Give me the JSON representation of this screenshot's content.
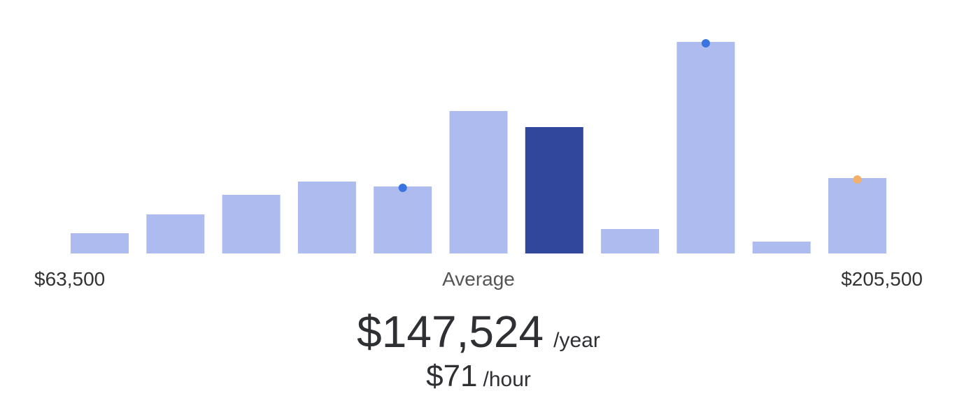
{
  "chart_data": {
    "type": "bar",
    "values": [
      29,
      56,
      84,
      103,
      96,
      204,
      181,
      35,
      303,
      17,
      108
    ],
    "ylim": [
      0,
      303
    ],
    "color": "#adbbee",
    "highlight": {
      "index": 6,
      "color": "#30479b"
    },
    "markers": [
      {
        "index": 4,
        "color": "#3b73e0"
      },
      {
        "index": 8,
        "color": "#3b73e0"
      },
      {
        "index": 10,
        "color": "#f2b06a"
      }
    ],
    "range_labels": {
      "min": "$63,500",
      "center": "Average",
      "max": "$205,500"
    },
    "summary": {
      "yearly": "$147,524",
      "yearly_unit": "/year",
      "hourly": "$71",
      "hourly_unit": "/hour"
    }
  }
}
